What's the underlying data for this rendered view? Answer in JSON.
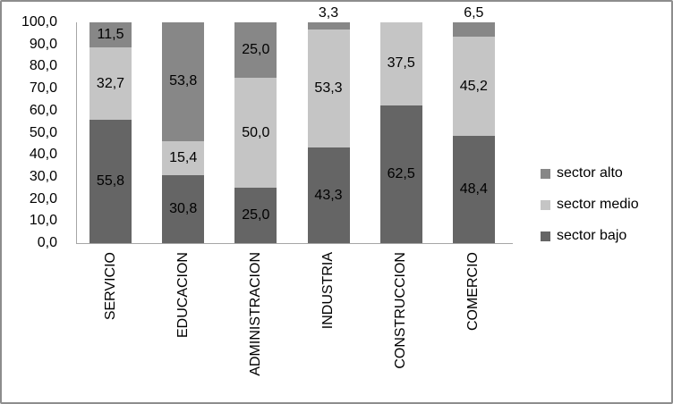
{
  "chart_data": {
    "type": "bar",
    "subtype": "stacked-100",
    "title": "",
    "xlabel": "",
    "ylabel": "",
    "categories": [
      "SERVICIO",
      "EDUCACION",
      "ADMINISTRACION",
      "INDUSTRIA",
      "CONSTRUCCION",
      "COMERCIO"
    ],
    "series": [
      {
        "name": "sector bajo",
        "color": "#656565",
        "values": [
          55.8,
          30.8,
          25.0,
          43.3,
          62.5,
          48.4
        ]
      },
      {
        "name": "sector medio",
        "color": "#c5c5c5",
        "values": [
          32.7,
          15.4,
          50.0,
          53.3,
          37.5,
          45.2
        ]
      },
      {
        "name": "sector alto",
        "color": "#878787",
        "values": [
          11.5,
          53.8,
          25.0,
          3.3,
          0.0,
          6.5
        ]
      }
    ],
    "value_labels_shown": true,
    "decimals": 1,
    "decimal_separator": ",",
    "ylim": [
      0,
      100
    ],
    "ytick_step": 10,
    "grid": false,
    "legend_position": "right",
    "legend": [
      {
        "label": "sector alto",
        "color": "#878787"
      },
      {
        "label": "sector medio",
        "color": "#c5c5c5"
      },
      {
        "label": "sector bajo",
        "color": "#656565"
      }
    ],
    "colors": {
      "axis_line": "#a6a6a6",
      "frame_border": "#8d8d8d",
      "text": "#000000",
      "background": "#ffffff"
    }
  }
}
